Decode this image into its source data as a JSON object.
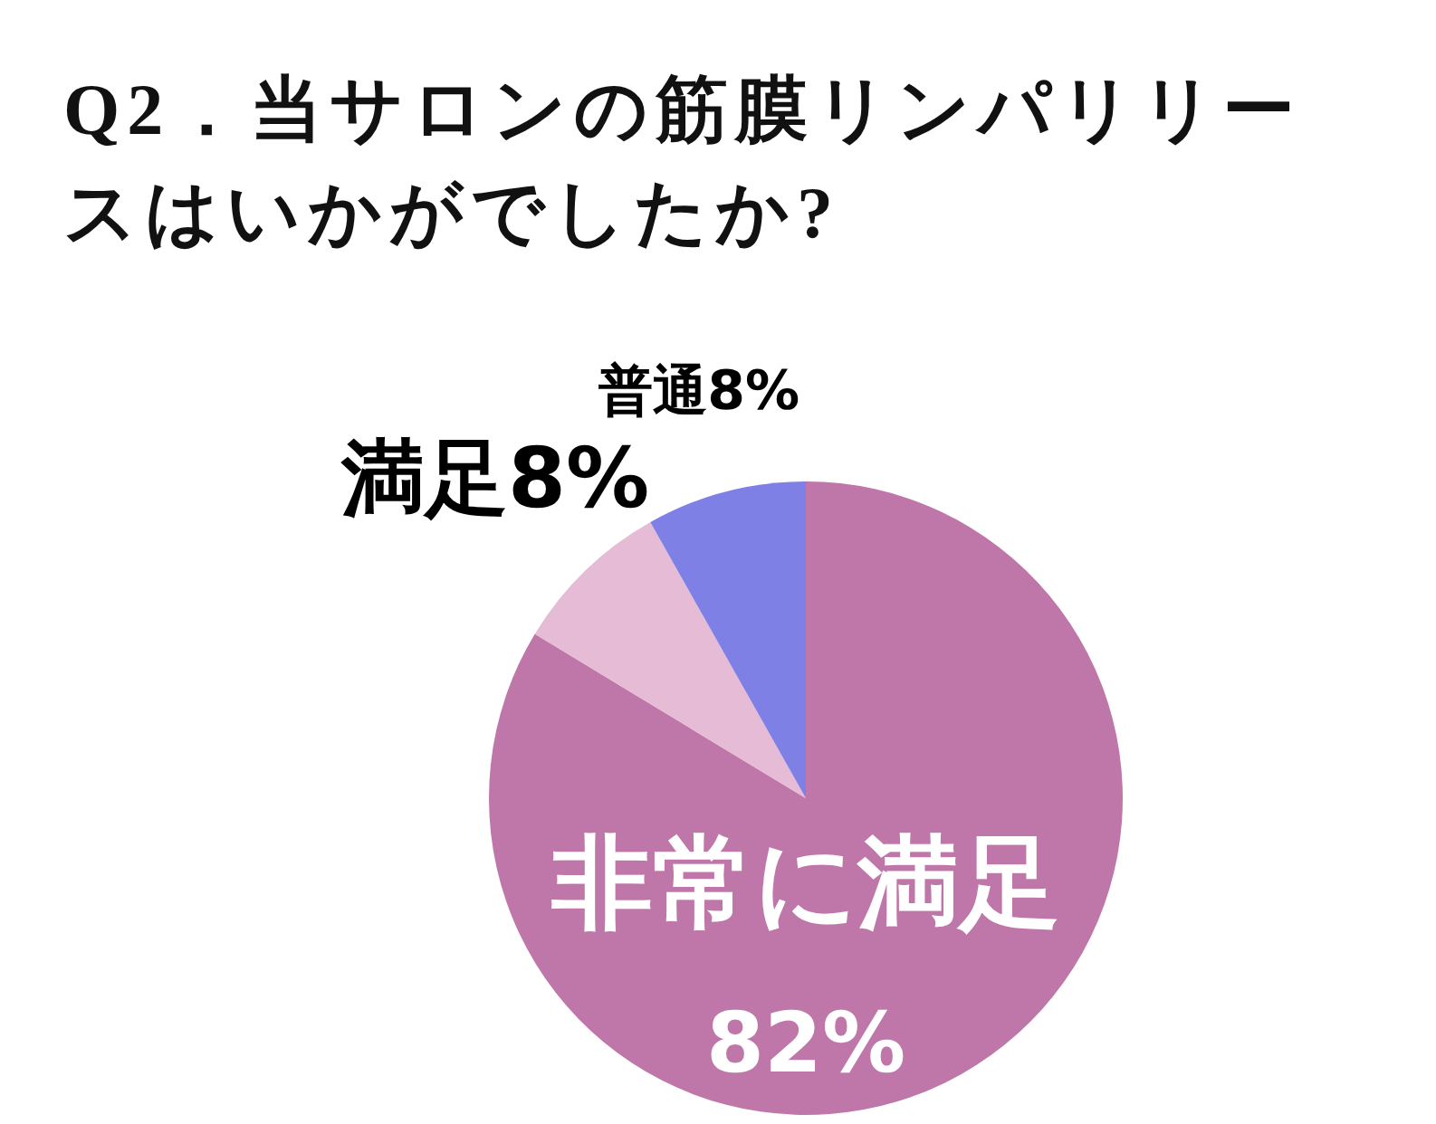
{
  "chart_data": {
    "type": "pie",
    "title": "Q2．当サロンの筋膜リンパリリースはいかがでしたか?",
    "categories": [
      "非常に満足",
      "満足",
      "普通"
    ],
    "values": [
      82,
      8,
      8
    ],
    "colors": [
      "#bf77a9",
      "#e6bbd5",
      "#7f80e5"
    ],
    "value_labels": [
      "82%",
      "8%",
      "8%"
    ]
  }
}
